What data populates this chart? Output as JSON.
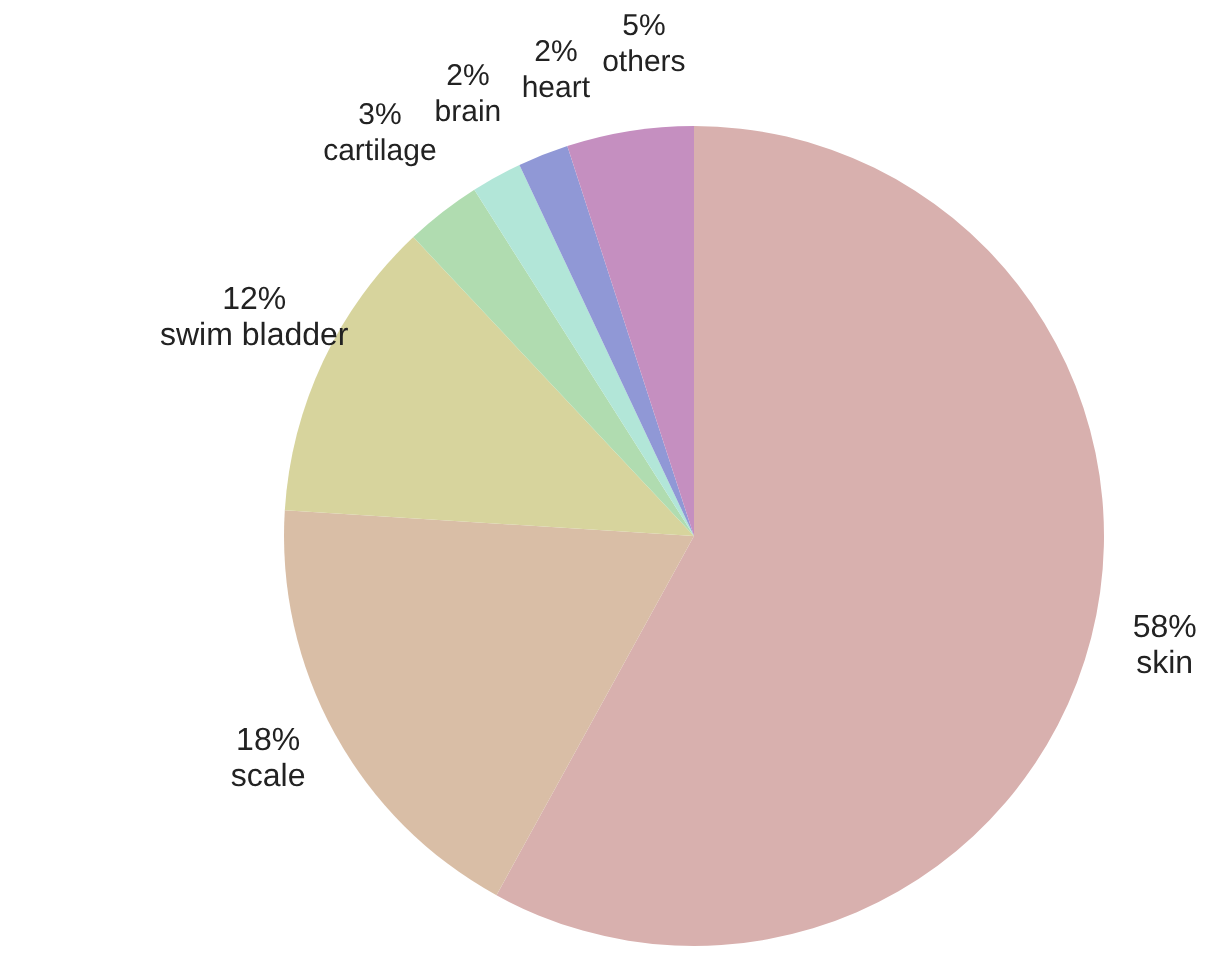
{
  "chart_data": {
    "type": "pie",
    "categories": [
      "skin",
      "scale",
      "swim bladder",
      "cartilage",
      "brain",
      "heart",
      "others"
    ],
    "values": [
      58,
      18,
      12,
      3,
      2,
      2,
      5
    ],
    "value_labels": [
      "58%",
      "18%",
      "12%",
      "3%",
      "2%",
      "2%",
      "5%"
    ],
    "colors": [
      "#d8b0ae",
      "#d9bea6",
      "#d7d49d",
      "#b0dcb0",
      "#b2e6d8",
      "#9098d6",
      "#c58fc0"
    ]
  }
}
